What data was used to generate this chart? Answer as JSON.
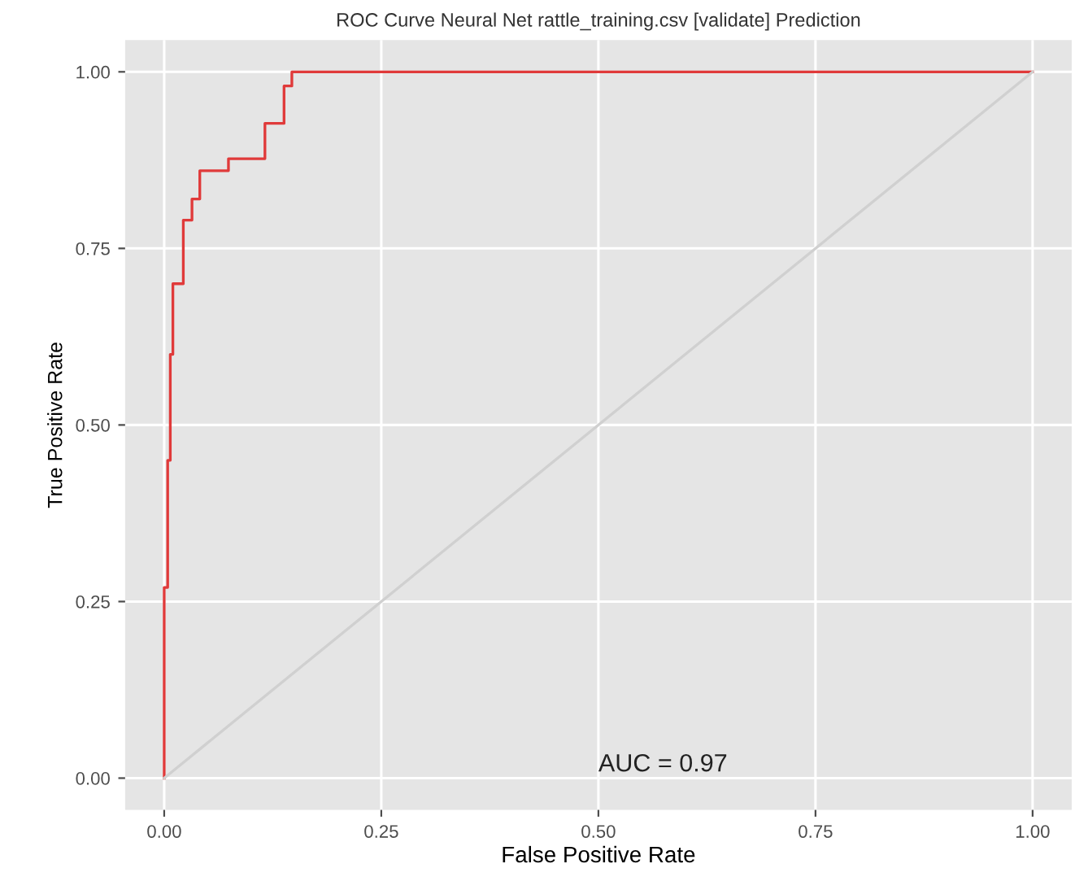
{
  "chart_data": {
    "type": "line",
    "title": "ROC Curve Neural Net rattle_training.csv [validate] Prediction",
    "xlabel": "False Positive Rate",
    "ylabel": "True Positive Rate",
    "series": [
      {
        "color": "#e03a3a",
        "x": [
          0,
          0,
          0.004,
          0.004,
          0.007,
          0.007,
          0.01,
          0.01,
          0.022,
          0.022,
          0.032,
          0.032,
          0.041,
          0.041,
          0.074,
          0.074,
          0.116,
          0.116,
          0.138,
          0.138,
          0.147,
          0.147,
          1.0
        ],
        "values": [
          0,
          0.27,
          0.27,
          0.45,
          0.45,
          0.6,
          0.6,
          0.7,
          0.7,
          0.79,
          0.79,
          0.82,
          0.82,
          0.86,
          0.86,
          0.877,
          0.877,
          0.927,
          0.927,
          0.98,
          0.98,
          1.0,
          1.0
        ]
      },
      {
        "color": "#d0d0d0",
        "x": [
          0,
          1
        ],
        "values": [
          0,
          1
        ]
      }
    ],
    "annotations": [
      "AUC = 0.97"
    ],
    "xlim": [
      -0.045,
      1.045
    ],
    "ylim": [
      -0.045,
      1.045
    ],
    "xticks": [
      {
        "value": 0,
        "label": "0.00"
      },
      {
        "value": 0.25,
        "label": "0.25"
      },
      {
        "value": 0.5,
        "label": "0.50"
      },
      {
        "value": 0.75,
        "label": "0.75"
      },
      {
        "value": 1,
        "label": "1.00"
      }
    ],
    "yticks": [
      {
        "value": 0,
        "label": "0.00"
      },
      {
        "value": 0.25,
        "label": "0.25"
      },
      {
        "value": 0.5,
        "label": "0.50"
      },
      {
        "value": 0.75,
        "label": "0.75"
      },
      {
        "value": 1,
        "label": "1.00"
      }
    ],
    "grid": true,
    "legend": false
  }
}
